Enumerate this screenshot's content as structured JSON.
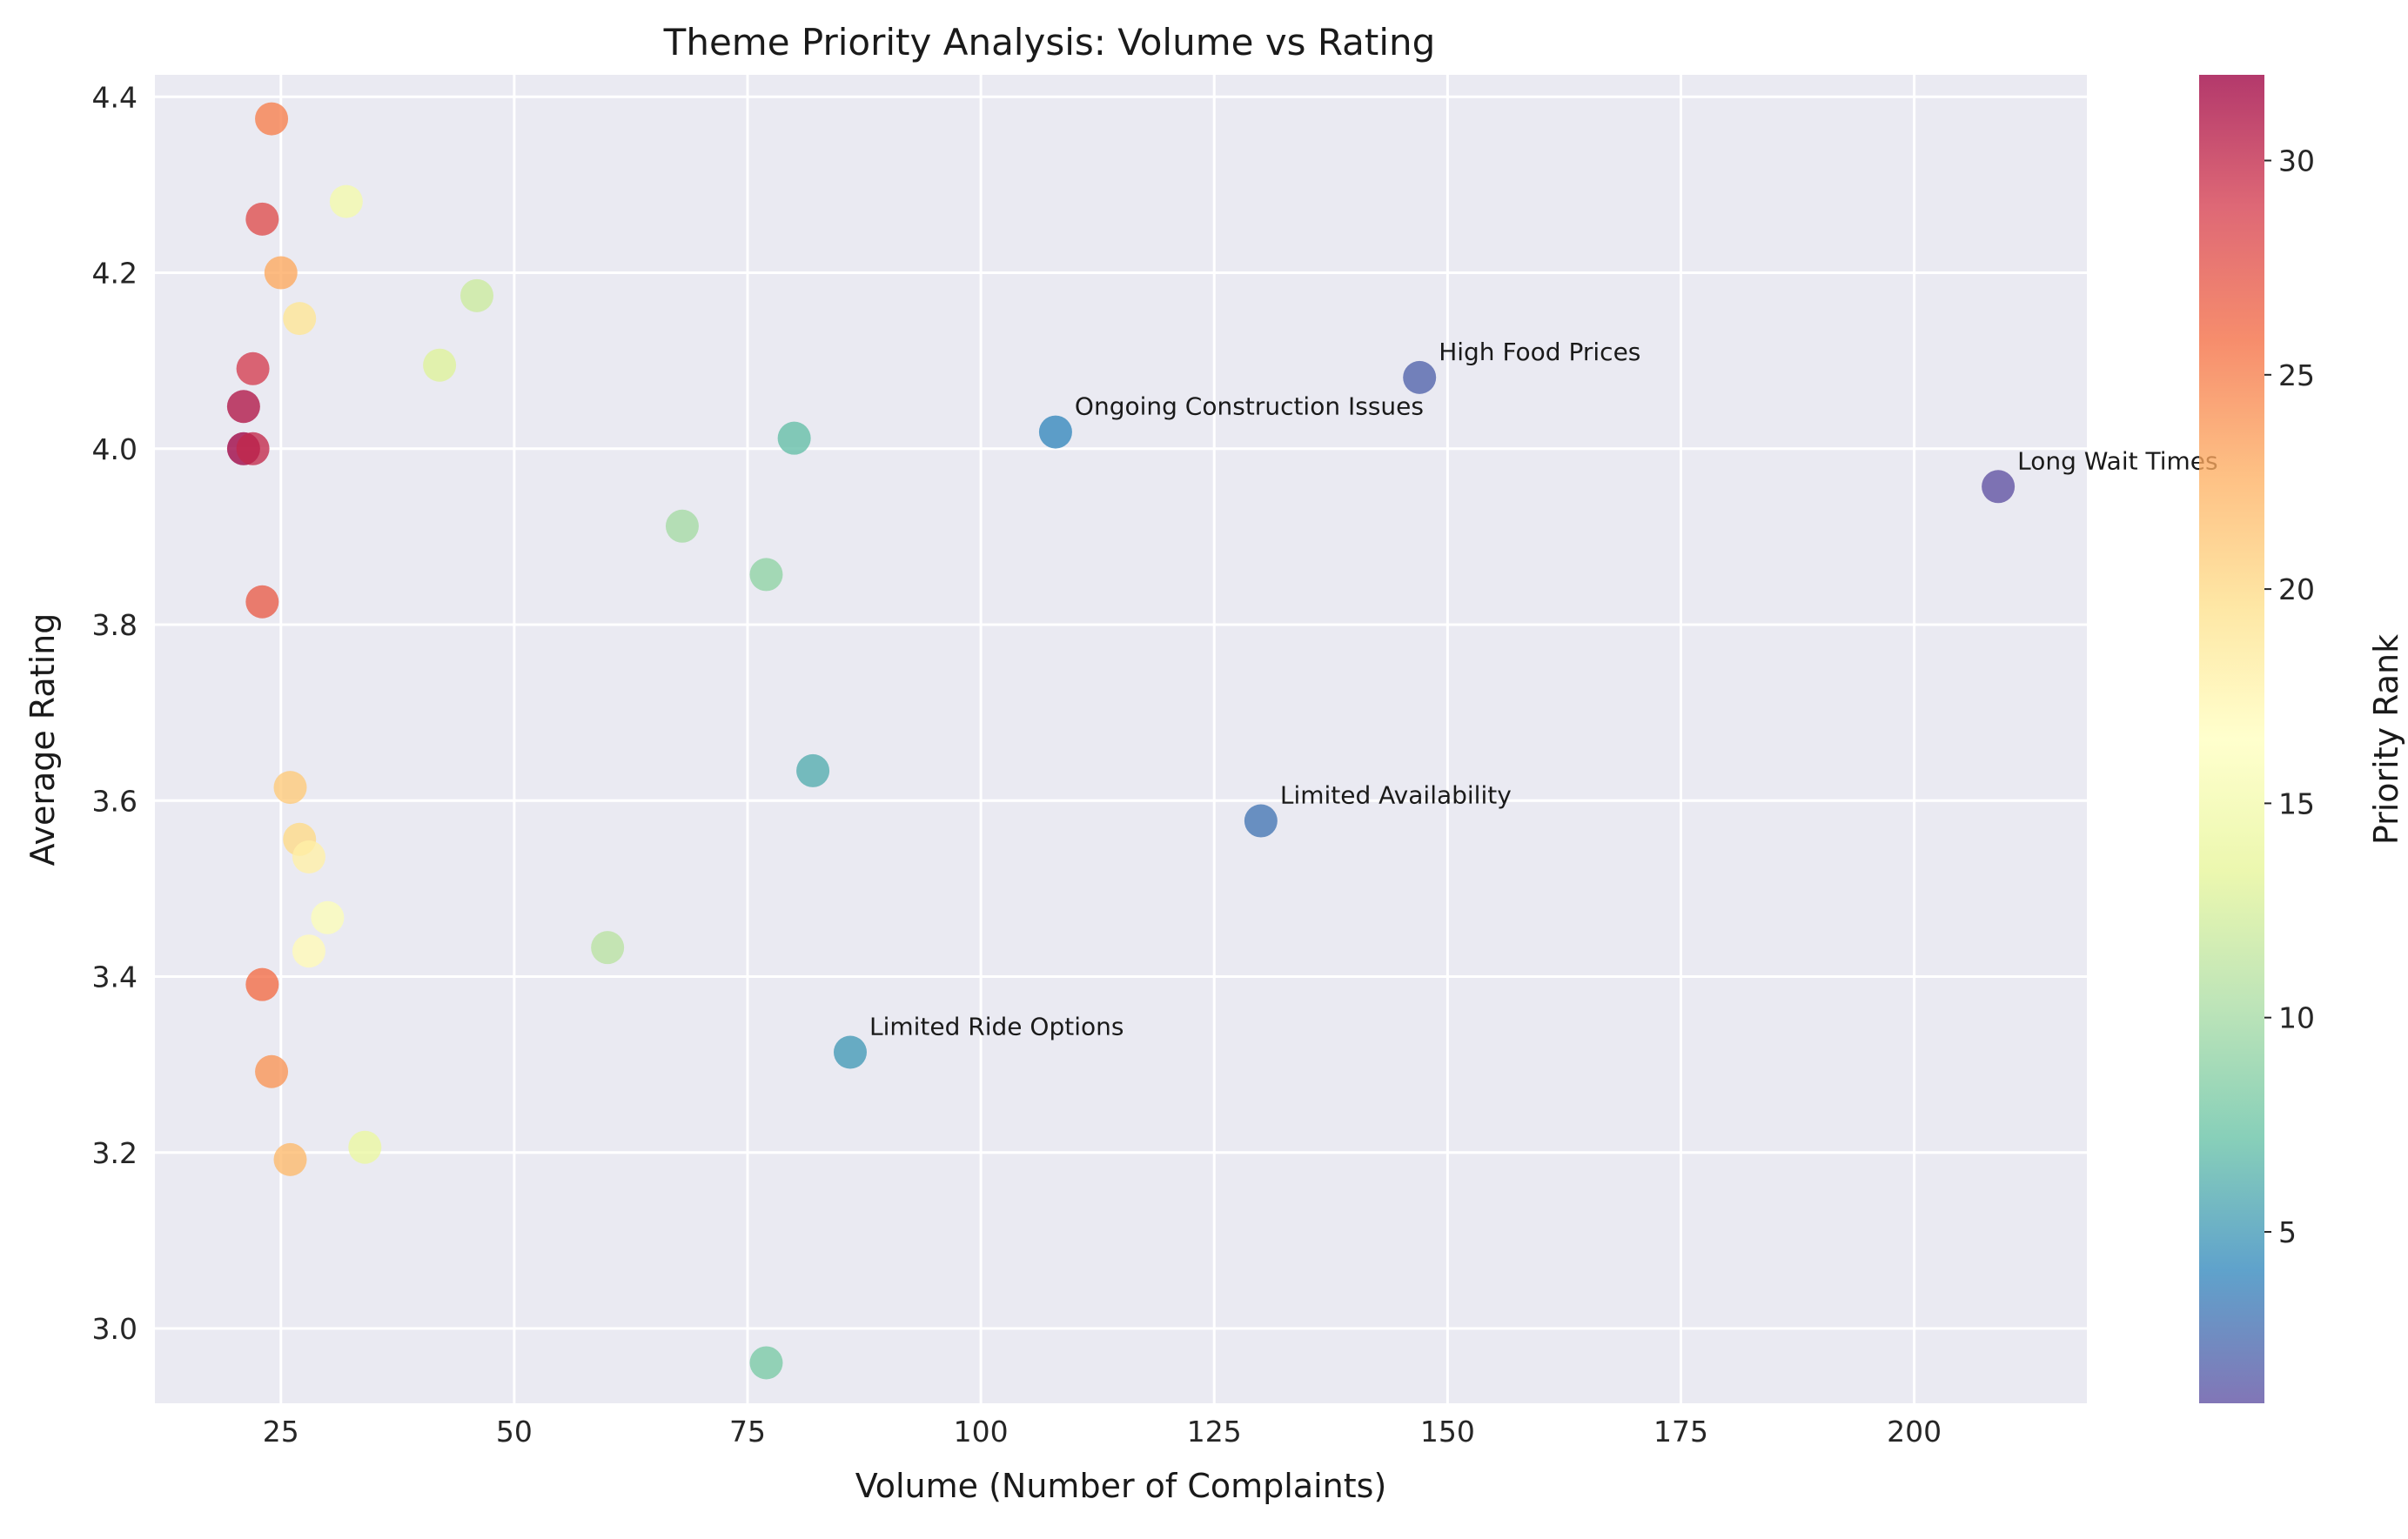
{
  "chart_data": {
    "type": "scatter",
    "title": "Theme Priority Analysis: Volume vs Rating",
    "xlabel": "Volume (Number of Complaints)",
    "ylabel": "Average Rating",
    "xlim": [
      11.5,
      218.5
    ],
    "ylim": [
      2.915,
      4.425
    ],
    "xticks": [
      25,
      50,
      75,
      100,
      125,
      150,
      175,
      200
    ],
    "yticks": [
      3.0,
      3.2,
      3.4,
      3.6,
      3.8,
      4.0,
      4.2,
      4.4
    ],
    "grid": true,
    "background": "#eaeaf2",
    "colorbar": {
      "label": "Priority Rank",
      "colormap": "Spectral_r",
      "range": [
        1,
        32
      ],
      "ticks": [
        5,
        10,
        15,
        20,
        25,
        30
      ],
      "stops": [
        "#5e4fa2",
        "#3288bd",
        "#66c2a5",
        "#abdda4",
        "#e6f598",
        "#ffffbf",
        "#fee08b",
        "#fdae61",
        "#f46d43",
        "#d53e4f",
        "#9e0142"
      ]
    },
    "points": [
      {
        "x": 209,
        "y": 3.957,
        "rank": 1,
        "label": "Long Wait Times"
      },
      {
        "x": 147,
        "y": 4.081,
        "rank": 2,
        "label": "High Food Prices"
      },
      {
        "x": 130,
        "y": 3.577,
        "rank": 3,
        "label": "Limited Availability"
      },
      {
        "x": 108,
        "y": 4.019,
        "rank": 4,
        "label": "Ongoing Construction Issues"
      },
      {
        "x": 86,
        "y": 3.314,
        "rank": 5,
        "label": "Limited Ride Options"
      },
      {
        "x": 82,
        "y": 3.634,
        "rank": 6,
        "label": ""
      },
      {
        "x": 80,
        "y": 4.012,
        "rank": 7,
        "label": ""
      },
      {
        "x": 77,
        "y": 2.961,
        "rank": 8,
        "label": ""
      },
      {
        "x": 77,
        "y": 3.857,
        "rank": 9,
        "label": ""
      },
      {
        "x": 68,
        "y": 3.912,
        "rank": 10,
        "label": ""
      },
      {
        "x": 60,
        "y": 3.433,
        "rank": 11,
        "label": ""
      },
      {
        "x": 46,
        "y": 4.174,
        "rank": 12,
        "label": ""
      },
      {
        "x": 42,
        "y": 4.095,
        "rank": 13,
        "label": ""
      },
      {
        "x": 34,
        "y": 3.206,
        "rank": 14,
        "label": ""
      },
      {
        "x": 32,
        "y": 4.281,
        "rank": 15,
        "label": ""
      },
      {
        "x": 30,
        "y": 3.467,
        "rank": 16,
        "label": ""
      },
      {
        "x": 28,
        "y": 3.429,
        "rank": 17,
        "label": ""
      },
      {
        "x": 28,
        "y": 3.536,
        "rank": 18,
        "label": ""
      },
      {
        "x": 27,
        "y": 4.148,
        "rank": 19,
        "label": ""
      },
      {
        "x": 27,
        "y": 3.556,
        "rank": 20,
        "label": ""
      },
      {
        "x": 26,
        "y": 3.615,
        "rank": 21,
        "label": ""
      },
      {
        "x": 26,
        "y": 3.192,
        "rank": 22,
        "label": ""
      },
      {
        "x": 25,
        "y": 4.2,
        "rank": 23,
        "label": ""
      },
      {
        "x": 24,
        "y": 3.292,
        "rank": 24,
        "label": ""
      },
      {
        "x": 24,
        "y": 4.375,
        "rank": 25,
        "label": ""
      },
      {
        "x": 23,
        "y": 3.391,
        "rank": 26,
        "label": ""
      },
      {
        "x": 23,
        "y": 3.826,
        "rank": 27,
        "label": ""
      },
      {
        "x": 23,
        "y": 4.261,
        "rank": 28,
        "label": ""
      },
      {
        "x": 22,
        "y": 4.091,
        "rank": 29,
        "label": ""
      },
      {
        "x": 22,
        "y": 4.0,
        "rank": 30,
        "label": ""
      },
      {
        "x": 21,
        "y": 4.048,
        "rank": 31,
        "label": ""
      },
      {
        "x": 21,
        "y": 4.0,
        "rank": 32,
        "label": ""
      }
    ]
  }
}
